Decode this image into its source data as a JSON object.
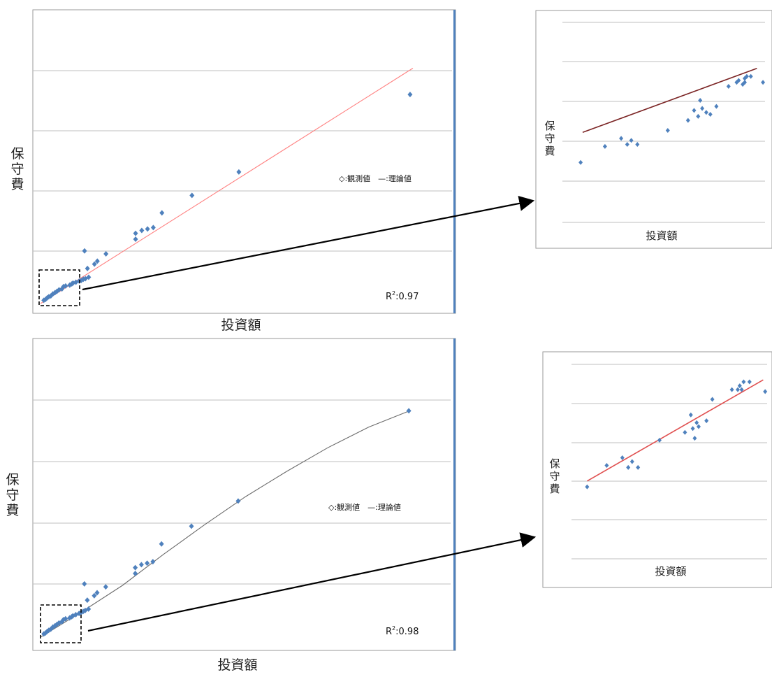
{
  "colors": {
    "marker": "#4f81bd",
    "fit_top": "#ff8080",
    "fit_top_zoom": "#7b2424",
    "fit_bottom": "#6b6b6b",
    "fit_bottom_zoom": "#e05050",
    "grid": "#bfbfbf",
    "frame_accent": "#4f81bd"
  },
  "chart_data": [
    {
      "id": "top_main",
      "type": "scatter",
      "xlabel": "投資額",
      "ylabel": "保守費",
      "legend": "◇:観測値　—:理論値",
      "r2_prefix": "R",
      "r2_sup": "2",
      "r2_value": ":0.97",
      "fit": "linear",
      "grid": true,
      "xlim": [
        0,
        100
      ],
      "ylim": [
        0,
        100
      ],
      "fit_line": [
        [
          0,
          0
        ],
        [
          90.5,
          80.5
        ]
      ],
      "points": [
        [
          89.8,
          71.5
        ],
        [
          48.2,
          45
        ],
        [
          36.8,
          37
        ],
        [
          29.5,
          31
        ],
        [
          27.4,
          26
        ],
        [
          26,
          25.5
        ],
        [
          24.6,
          25
        ],
        [
          23.1,
          24
        ],
        [
          23.1,
          22
        ],
        [
          15.9,
          17
        ],
        [
          10.7,
          18
        ],
        [
          13.8,
          14.5
        ],
        [
          13.1,
          13.5
        ],
        [
          11.4,
          12
        ],
        [
          11.7,
          9
        ],
        [
          10.9,
          8.5
        ],
        [
          10.4,
          8.3
        ],
        [
          9.9,
          7.9
        ],
        [
          9.4,
          7.7
        ],
        [
          8.6,
          7.3
        ],
        [
          7.9,
          7
        ],
        [
          7.6,
          6.7
        ],
        [
          7.1,
          6.3
        ],
        [
          6.1,
          6
        ],
        [
          5.6,
          5.8
        ],
        [
          5.2,
          5
        ],
        [
          4.5,
          4.7
        ],
        [
          4.0,
          4.2
        ],
        [
          3.5,
          3.7
        ],
        [
          3.0,
          3.3
        ],
        [
          2.5,
          2.6
        ],
        [
          2,
          2.3
        ],
        [
          1.6,
          1.9
        ],
        [
          1.2,
          1.4
        ],
        [
          0.8,
          1.1
        ]
      ]
    },
    {
      "id": "top_zoom",
      "type": "scatter",
      "xlabel": "投資額",
      "ylabel": "保守費",
      "fit": "linear",
      "grid": true,
      "xlim": [
        0,
        100
      ],
      "ylim": [
        0,
        100
      ],
      "fit_line": [
        [
          10,
          45
        ],
        [
          96,
          77
        ]
      ],
      "points": [
        [
          9,
          30
        ],
        [
          21,
          38
        ],
        [
          29,
          42
        ],
        [
          32,
          39
        ],
        [
          34,
          41
        ],
        [
          37,
          39
        ],
        [
          52,
          46
        ],
        [
          62,
          51
        ],
        [
          65,
          56
        ],
        [
          67,
          53
        ],
        [
          68,
          61
        ],
        [
          69,
          57
        ],
        [
          71,
          55
        ],
        [
          73,
          54
        ],
        [
          76,
          58
        ],
        [
          82,
          68
        ],
        [
          86,
          70
        ],
        [
          87,
          71
        ],
        [
          89,
          69
        ],
        [
          90,
          70
        ],
        [
          90,
          72
        ],
        [
          91,
          73
        ],
        [
          93,
          73
        ],
        [
          99,
          70
        ]
      ]
    },
    {
      "id": "bottom_main",
      "type": "scatter",
      "xlabel": "投資額",
      "ylabel": "保守費",
      "legend": "◇:観測値　—:理論値",
      "r2_prefix": "R",
      "r2_sup": "2",
      "r2_value": ":0.98",
      "fit": "nonlinear",
      "grid": true,
      "xlim": [
        0,
        100
      ],
      "ylim": [
        0,
        100
      ],
      "fit_line": [
        [
          0,
          0
        ],
        [
          10,
          8.5
        ],
        [
          20,
          17.5
        ],
        [
          30,
          28
        ],
        [
          40,
          38
        ],
        [
          50,
          47.5
        ],
        [
          60,
          56
        ],
        [
          70,
          64
        ],
        [
          80,
          71
        ],
        [
          90,
          76.5
        ]
      ],
      "points": [
        [
          89.8,
          76.5
        ],
        [
          48.2,
          46
        ],
        [
          36.8,
          37.5
        ],
        [
          29.5,
          31.5
        ],
        [
          27.4,
          25.5
        ],
        [
          26,
          25
        ],
        [
          24.6,
          24.5
        ],
        [
          23.1,
          23.5
        ],
        [
          23.1,
          21.5
        ],
        [
          15.9,
          17
        ],
        [
          10.7,
          18
        ],
        [
          13.8,
          15
        ],
        [
          13.1,
          14
        ],
        [
          11.4,
          12.5
        ],
        [
          11.7,
          9.5
        ],
        [
          10.9,
          9
        ],
        [
          10.4,
          8.7
        ],
        [
          9.9,
          8.3
        ],
        [
          9.4,
          8
        ],
        [
          8.6,
          7.6
        ],
        [
          7.9,
          7.2
        ],
        [
          7.6,
          6.9
        ],
        [
          7.1,
          6.5
        ],
        [
          6.1,
          6.2
        ],
        [
          5.6,
          5.9
        ],
        [
          5.2,
          5.2
        ],
        [
          4.5,
          4.8
        ],
        [
          4.0,
          4.3
        ],
        [
          3.5,
          3.8
        ],
        [
          3.0,
          3.4
        ],
        [
          2.5,
          2.7
        ],
        [
          2,
          2.3
        ],
        [
          1.6,
          1.9
        ],
        [
          1.2,
          1.4
        ],
        [
          0.8,
          1.1
        ]
      ]
    },
    {
      "id": "bottom_zoom",
      "type": "scatter",
      "xlabel": "投資額",
      "ylabel": "保守費",
      "fit": "linear",
      "grid": true,
      "xlim": [
        0,
        100
      ],
      "ylim": [
        0,
        100
      ],
      "fit_line": [
        [
          8,
          40
        ],
        [
          98,
          92
        ]
      ],
      "points": [
        [
          8,
          37
        ],
        [
          18,
          48
        ],
        [
          26,
          52
        ],
        [
          29,
          47
        ],
        [
          31,
          50
        ],
        [
          34,
          47
        ],
        [
          45,
          61
        ],
        [
          58,
          65
        ],
        [
          61,
          74
        ],
        [
          62,
          67
        ],
        [
          63,
          62
        ],
        [
          64,
          70
        ],
        [
          65,
          68
        ],
        [
          69,
          71
        ],
        [
          72,
          82
        ],
        [
          82,
          87
        ],
        [
          85,
          87
        ],
        [
          86,
          89
        ],
        [
          87,
          87
        ],
        [
          88,
          91
        ],
        [
          91,
          91
        ],
        [
          99,
          86
        ]
      ]
    }
  ]
}
